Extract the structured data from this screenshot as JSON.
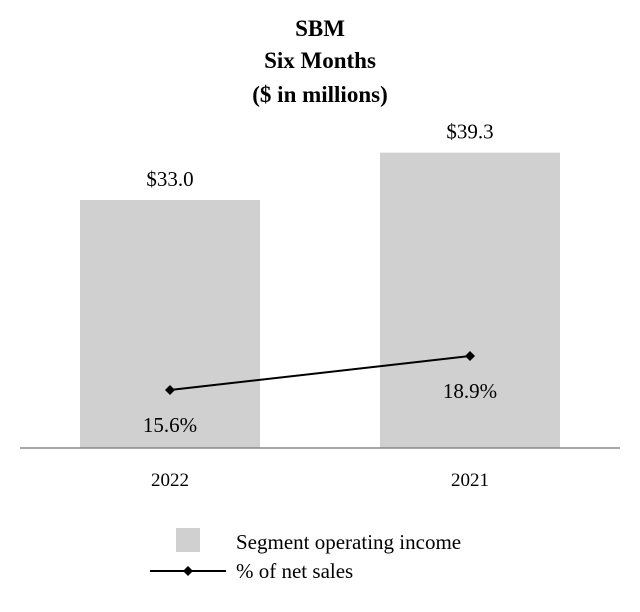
{
  "chart_data": {
    "type": "bar",
    "title": [
      "SBM",
      "Six Months",
      "($ in millions)"
    ],
    "categories": [
      "2022",
      "2021"
    ],
    "series": [
      {
        "name": "Segment operating income",
        "values": [
          33.0,
          39.3
        ],
        "labels": [
          "$33.0",
          "$39.3"
        ],
        "color": "#d0d0d0"
      },
      {
        "name": "% of net sales",
        "type": "line",
        "values": [
          15.6,
          18.9
        ],
        "labels": [
          "15.6%",
          "18.9%"
        ],
        "color": "#000000",
        "marker": "diamond"
      }
    ],
    "legend_position": "bottom"
  }
}
